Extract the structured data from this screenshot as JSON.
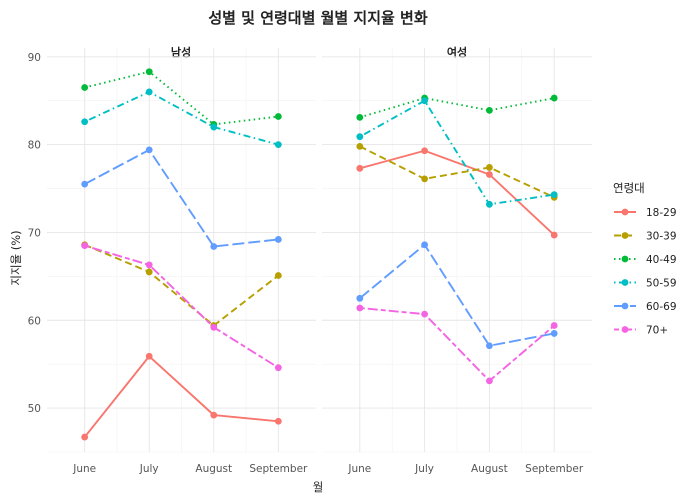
{
  "chart_data": {
    "type": "line",
    "title": "성별 및 연령대별 월별 지지율 변화",
    "xlabel": "월",
    "ylabel": "지지율 (%)",
    "categories": [
      "June",
      "July",
      "August",
      "September"
    ],
    "yticks": [
      50,
      60,
      70,
      80,
      90
    ],
    "ylim": [
      45,
      91
    ],
    "legend": {
      "title": "연령대",
      "position": "right"
    },
    "grid": true,
    "facets": [
      {
        "label": "남성",
        "series": [
          {
            "name": "18-29",
            "values": [
              46.7,
              55.9,
              49.2,
              48.5
            ]
          },
          {
            "name": "30-39",
            "values": [
              68.6,
              65.5,
              59.4,
              65.1
            ]
          },
          {
            "name": "40-49",
            "values": [
              86.5,
              88.3,
              82.3,
              83.2
            ]
          },
          {
            "name": "50-59",
            "values": [
              82.6,
              86.0,
              82.0,
              80.0
            ]
          },
          {
            "name": "60-69",
            "values": [
              75.5,
              79.4,
              68.4,
              69.2
            ]
          },
          {
            "name": "70+",
            "values": [
              68.5,
              66.3,
              59.2,
              54.6
            ]
          }
        ]
      },
      {
        "label": "여성",
        "series": [
          {
            "name": "18-29",
            "values": [
              77.3,
              79.3,
              76.6,
              69.7
            ]
          },
          {
            "name": "30-39",
            "values": [
              79.8,
              76.1,
              77.4,
              74.0
            ]
          },
          {
            "name": "40-49",
            "values": [
              83.1,
              85.3,
              83.9,
              85.3
            ]
          },
          {
            "name": "50-59",
            "values": [
              80.9,
              85.0,
              73.2,
              74.3
            ]
          },
          {
            "name": "60-69",
            "values": [
              62.5,
              68.6,
              57.1,
              58.5
            ]
          },
          {
            "name": "70+",
            "values": [
              61.4,
              60.7,
              53.1,
              59.4
            ]
          }
        ]
      }
    ],
    "series_styles": [
      {
        "name": "18-29",
        "color": "#F8766D",
        "dash": "solid"
      },
      {
        "name": "30-39",
        "color": "#B79F00",
        "dash": "dashed"
      },
      {
        "name": "40-49",
        "color": "#00BA38",
        "dash": "dotted"
      },
      {
        "name": "50-59",
        "color": "#00BFC4",
        "dash": "dotdash"
      },
      {
        "name": "60-69",
        "color": "#619CFF",
        "dash": "longdash"
      },
      {
        "name": "70+",
        "color": "#F564E3",
        "dash": "twodash"
      }
    ]
  }
}
